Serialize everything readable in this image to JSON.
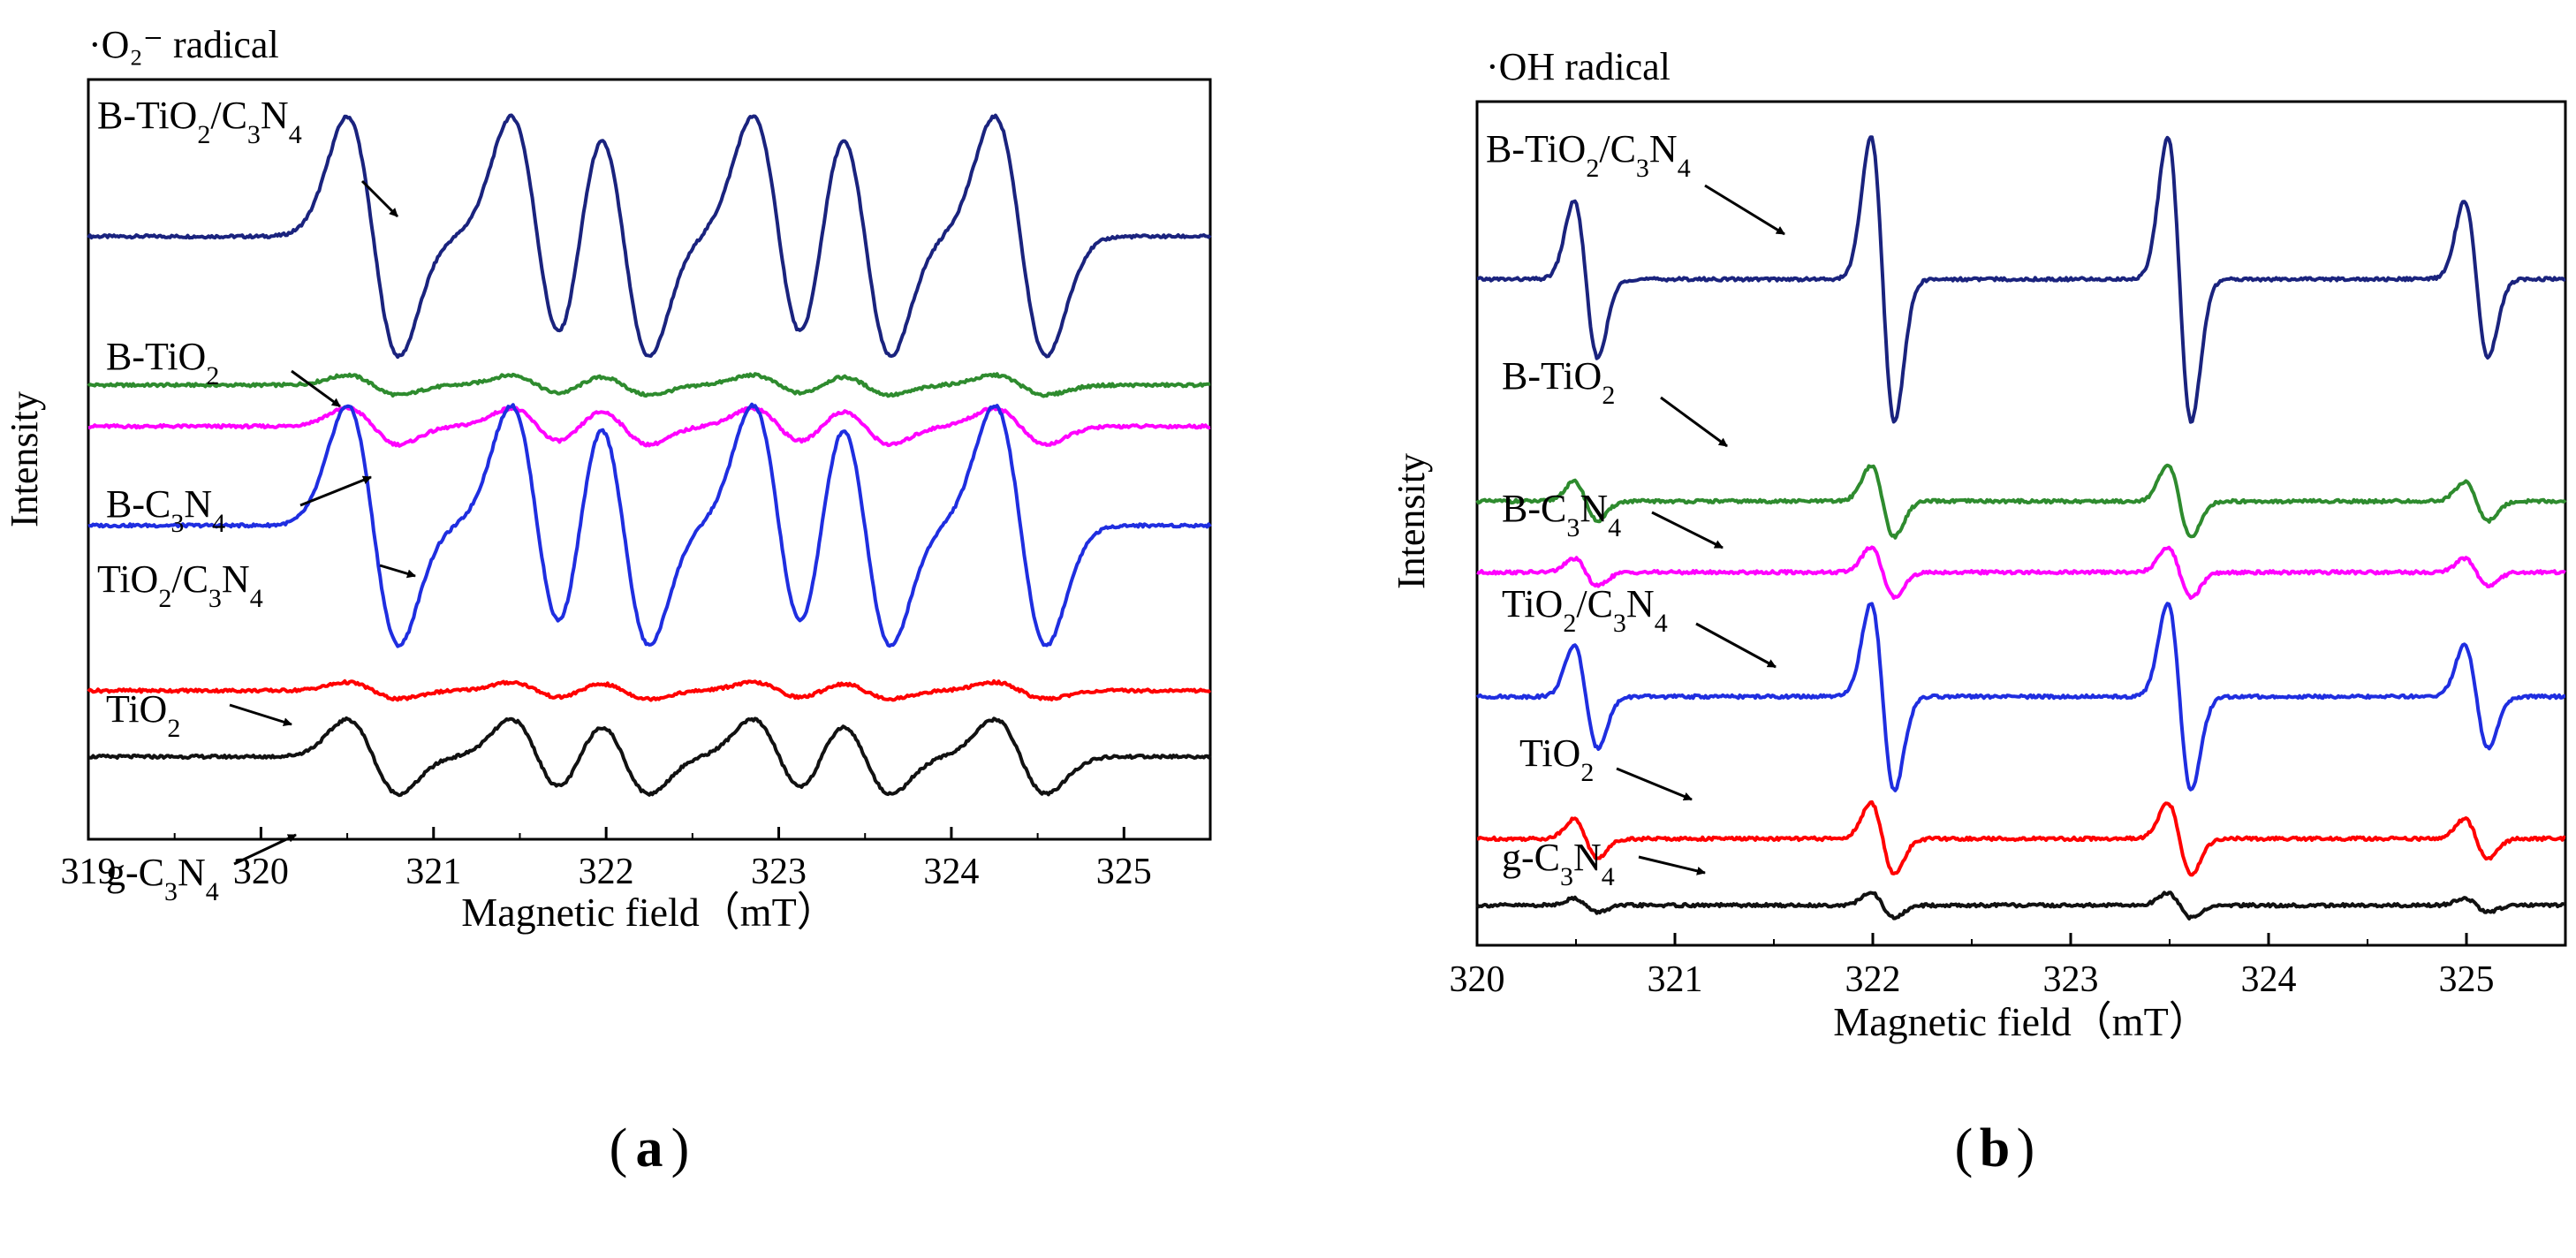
{
  "chart_data": [
    {
      "id": "a",
      "type": "line",
      "panel_label": "a",
      "title": "·O₂⁻ radical",
      "xlabel": "Magnetic field（mT）",
      "ylabel": "Intensity",
      "xlim": [
        319,
        325.5
      ],
      "ylim": [
        0,
        9.2
      ],
      "x_ticks": [
        "319",
        "320",
        "321",
        "322",
        "323",
        "324",
        "325"
      ],
      "grid": false,
      "signal": "DMPO-O2- sextet",
      "series": [
        {
          "name": "B-TiO2/C3N4",
          "label_main": [
            "B-TiO",
            "/C",
            "N"
          ],
          "label_sub": [
            "2",
            "3",
            "4"
          ],
          "color": "#1a237e",
          "baseline": 7.3,
          "amplitude": 1.45,
          "lines": [
            320.65,
            321.6,
            322.1,
            323.0,
            323.5,
            324.4
          ],
          "width": 0.15
        },
        {
          "name": "B-TiO2",
          "label_main": [
            "B-TiO"
          ],
          "label_sub": [
            "2"
          ],
          "color": "#2e8b2e",
          "baseline": 5.5,
          "amplitude": 0.12,
          "lines": [
            320.65,
            321.6,
            322.1,
            323.0,
            323.5,
            324.4
          ],
          "width": 0.15
        },
        {
          "name": "B-C3N4",
          "label_main": [
            "B-C",
            "N"
          ],
          "label_sub": [
            "3",
            "4"
          ],
          "color": "#ff00ff",
          "baseline": 5.0,
          "amplitude": 0.22,
          "lines": [
            320.65,
            321.6,
            322.1,
            323.0,
            323.5,
            324.4
          ],
          "width": 0.15
        },
        {
          "name": "TiO2/C3N4",
          "label_main": [
            "TiO",
            "/C",
            "N"
          ],
          "label_sub": [
            "2",
            "3",
            "4"
          ],
          "color": "#1f2ee0",
          "baseline": 3.8,
          "amplitude": 1.45,
          "lines": [
            320.65,
            321.6,
            322.1,
            323.0,
            323.5,
            324.4
          ],
          "width": 0.15
        },
        {
          "name": "TiO2",
          "label_main": [
            "TiO"
          ],
          "label_sub": [
            "2"
          ],
          "color": "#ff0000",
          "baseline": 1.8,
          "amplitude": 0.1,
          "lines": [
            320.65,
            321.6,
            322.1,
            323.0,
            323.5,
            324.4
          ],
          "width": 0.15
        },
        {
          "name": "g-C3N4",
          "label_main": [
            "g-C",
            "N"
          ],
          "label_sub": [
            "3",
            "4"
          ],
          "color": "#111111",
          "baseline": 1.0,
          "amplitude": 0.45,
          "lines": [
            320.65,
            321.6,
            322.1,
            323.0,
            323.5,
            324.4
          ],
          "width": 0.15
        }
      ]
    },
    {
      "id": "b",
      "type": "line",
      "panel_label": "b",
      "title": "·OH radical",
      "xlabel": "Magnetic field（mT）",
      "ylabel": "Intensity",
      "xlim": [
        320,
        325.5
      ],
      "ylim": [
        0,
        9.5
      ],
      "x_ticks": [
        "320",
        "321",
        "322",
        "323",
        "324",
        "325"
      ],
      "grid": false,
      "signal": "DMPO-OH quartet 1:2:2:1",
      "series": [
        {
          "name": "B-TiO2/C3N4",
          "label_main": [
            "B-TiO",
            "/C",
            "N"
          ],
          "label_sub": [
            "2",
            "3",
            "4"
          ],
          "color": "#1a237e",
          "baseline": 7.5,
          "amplitude": 1.6,
          "lines": [
            320.55,
            322.05,
            323.55,
            325.05
          ],
          "weights": [
            0.55,
            1,
            1,
            0.55
          ],
          "width": 0.06
        },
        {
          "name": "B-TiO2",
          "label_main": [
            "B-TiO"
          ],
          "label_sub": [
            "2"
          ],
          "color": "#2e8b2e",
          "baseline": 5.0,
          "amplitude": 0.4,
          "lines": [
            320.55,
            322.05,
            323.55,
            325.05
          ],
          "weights": [
            0.55,
            1,
            1,
            0.55
          ],
          "width": 0.06
        },
        {
          "name": "B-C3N4",
          "label_main": [
            "B-C",
            "N"
          ],
          "label_sub": [
            "3",
            "4"
          ],
          "color": "#ff00ff",
          "baseline": 4.2,
          "amplitude": 0.28,
          "lines": [
            320.55,
            322.05,
            323.55,
            325.05
          ],
          "weights": [
            0.55,
            1,
            1,
            0.55
          ],
          "width": 0.06
        },
        {
          "name": "TiO2/C3N4",
          "label_main": [
            "TiO",
            "/C",
            "N"
          ],
          "label_sub": [
            "2",
            "3",
            "4"
          ],
          "color": "#1f2ee0",
          "baseline": 2.8,
          "amplitude": 1.05,
          "lines": [
            320.55,
            322.05,
            323.55,
            325.05
          ],
          "weights": [
            0.55,
            1,
            1,
            0.55
          ],
          "width": 0.06
        },
        {
          "name": "TiO2",
          "label_main": [
            "TiO"
          ],
          "label_sub": [
            "2"
          ],
          "color": "#ff0000",
          "baseline": 1.2,
          "amplitude": 0.4,
          "lines": [
            320.55,
            322.05,
            323.55,
            325.05
          ],
          "weights": [
            0.55,
            1,
            1,
            0.55
          ],
          "width": 0.06
        },
        {
          "name": "g-C3N4",
          "label_main": [
            "g-C",
            "N"
          ],
          "label_sub": [
            "3",
            "4"
          ],
          "color": "#111111",
          "baseline": 0.45,
          "amplitude": 0.14,
          "lines": [
            320.55,
            322.05,
            323.55,
            325.05
          ],
          "weights": [
            0.55,
            1,
            1,
            0.55
          ],
          "width": 0.06
        }
      ]
    }
  ]
}
